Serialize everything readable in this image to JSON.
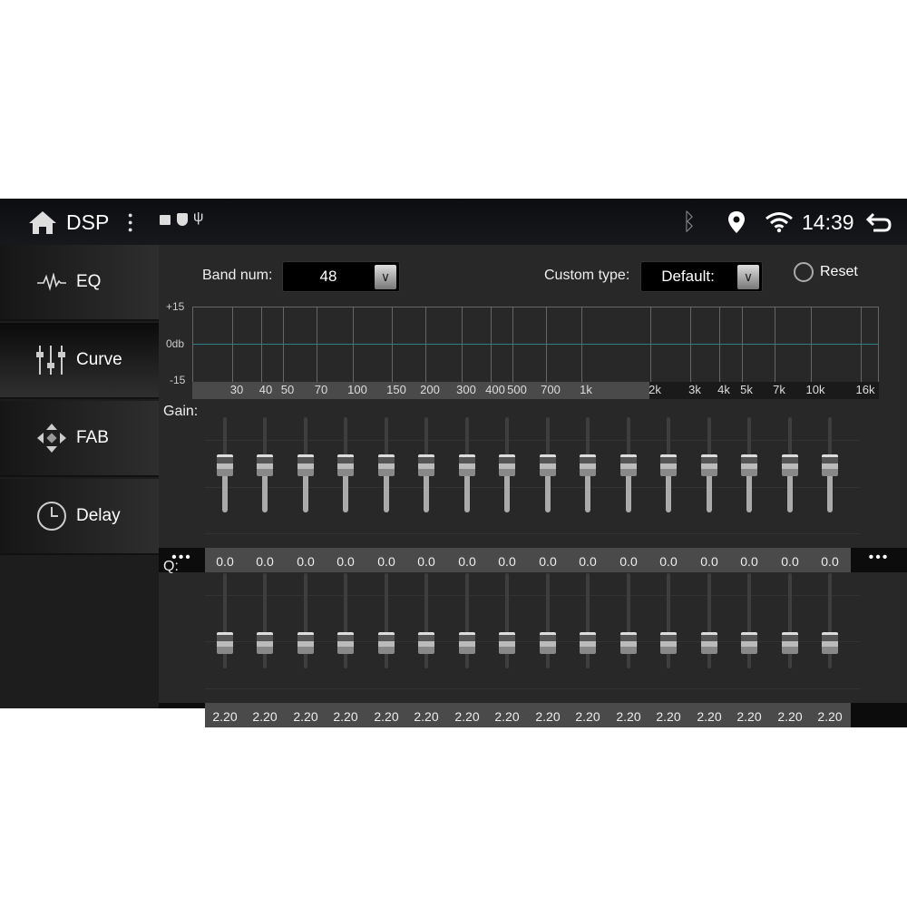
{
  "status_bar": {
    "app_title": "DSP",
    "time": "14:39",
    "icons": [
      "home-icon",
      "more-vert-icon",
      "image-icon",
      "shield-icon",
      "usb-icon",
      "bluetooth-icon",
      "location-icon",
      "wifi-icon",
      "back-icon"
    ]
  },
  "sidebar": {
    "items": [
      {
        "label": "EQ",
        "icon": "waveform-icon"
      },
      {
        "label": "Curve",
        "icon": "sliders-icon",
        "selected": true
      },
      {
        "label": "FAB",
        "icon": "fader-balance-icon"
      },
      {
        "label": "Delay",
        "icon": "clock-icon"
      }
    ]
  },
  "controls": {
    "band_num_label": "Band num:",
    "band_num_value": "48",
    "custom_type_label": "Custom type:",
    "custom_type_value": "Default:",
    "reset_label": "Reset"
  },
  "chart": {
    "y_top": "+15",
    "y_mid": "0db",
    "y_bottom": "-15",
    "freq_labels": [
      "30",
      "40",
      "50",
      "70",
      "100",
      "150",
      "200",
      "300",
      "400",
      "500",
      "700",
      "1k",
      "2k",
      "3k",
      "4k",
      "5k",
      "7k",
      "10k",
      "16k"
    ],
    "curve_color": "#2f7f86"
  },
  "gain": {
    "label": "Gain:",
    "more_left": "•••",
    "more_right": "•••",
    "range": [
      -15,
      15
    ],
    "values": [
      "0.0",
      "0.0",
      "0.0",
      "0.0",
      "0.0",
      "0.0",
      "0.0",
      "0.0",
      "0.0",
      "0.0",
      "0.0",
      "0.0",
      "0.0",
      "0.0",
      "0.0",
      "0.0"
    ]
  },
  "q": {
    "label": "Q:",
    "values": [
      "2.20",
      "2.20",
      "2.20",
      "2.20",
      "2.20",
      "2.20",
      "2.20",
      "2.20",
      "2.20",
      "2.20",
      "2.20",
      "2.20",
      "2.20",
      "2.20",
      "2.20",
      "2.20"
    ],
    "level_fraction": 0.2
  }
}
